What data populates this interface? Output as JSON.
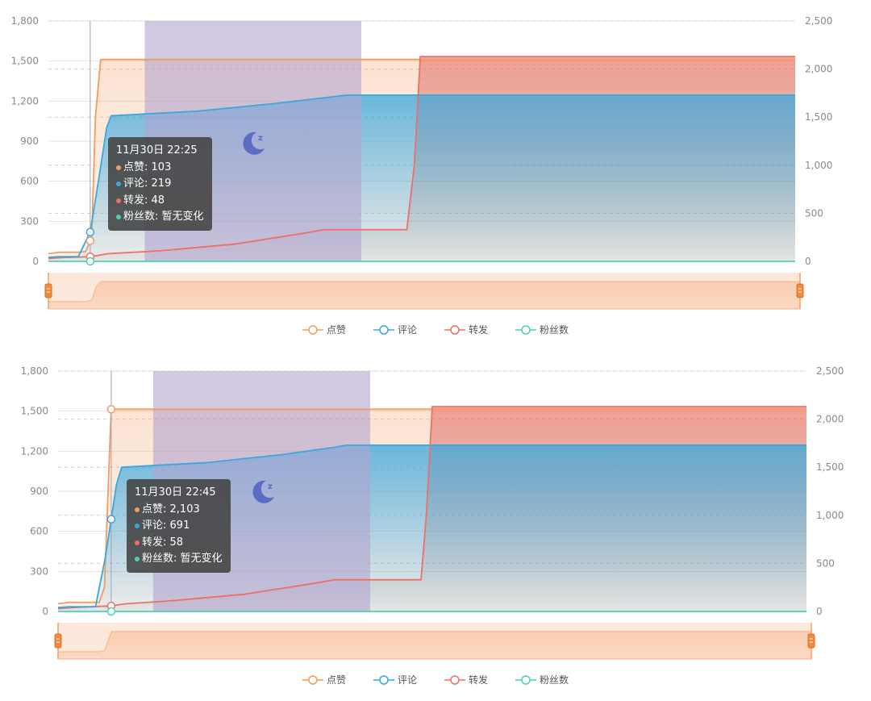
{
  "colors": {
    "likes": "#f59b5e",
    "comments": "#3aa8df",
    "reposts": "#ee6f66",
    "fans": "#4dd0b4",
    "night_band": "#b3a4cf",
    "tooltip_bg": "#464646",
    "moon": "#5a6cc4"
  },
  "icons": {
    "moon": "moon-zz-icon"
  },
  "legend": [
    "点赞",
    "评论",
    "转发",
    "粉丝数"
  ],
  "chart_data": [
    {
      "type": "area",
      "left_axis": {
        "ticks": [
          "0",
          "300",
          "600",
          "900",
          "1,200",
          "1,500",
          "1,800"
        ],
        "ylim": [
          0,
          1800
        ]
      },
      "right_axis": {
        "ticks": [
          "0",
          "500",
          "1,000",
          "1,500",
          "2,000",
          "2,500"
        ],
        "ylim": [
          0,
          2500
        ]
      },
      "x_index_range": [
        0,
        100
      ],
      "night_band": [
        12.9,
        41.9
      ],
      "hover_index": 5.6,
      "series": [
        {
          "name": "点赞",
          "axis": "right",
          "points": [
            [
              0,
              80
            ],
            [
              1.5,
              95
            ],
            [
              4,
              95
            ],
            [
              5,
              103
            ],
            [
              5.8,
              250
            ],
            [
              6.3,
              1500
            ],
            [
              7,
              2100
            ],
            [
              50,
              2100
            ],
            [
              100,
              2100
            ]
          ]
        },
        {
          "name": "评论",
          "axis": "left",
          "points": [
            [
              0,
              30
            ],
            [
              1.5,
              35
            ],
            [
              4,
              35
            ],
            [
              5.6,
              219
            ],
            [
              6.7,
              600
            ],
            [
              7.8,
              1000
            ],
            [
              8.4,
              1090
            ],
            [
              20,
              1125
            ],
            [
              30,
              1180
            ],
            [
              37,
              1225
            ],
            [
              40,
              1245
            ],
            [
              100,
              1245
            ]
          ]
        },
        {
          "name": "转发",
          "axis": "right",
          "points": [
            [
              0,
              30
            ],
            [
              2,
              40
            ],
            [
              5.6,
              48
            ],
            [
              8,
              80
            ],
            [
              15,
              110
            ],
            [
              25,
              180
            ],
            [
              34,
              290
            ],
            [
              37,
              330
            ],
            [
              48,
              330
            ],
            [
              49,
              1000
            ],
            [
              49.8,
              2130
            ],
            [
              100,
              2130
            ]
          ]
        },
        {
          "name": "粉丝数",
          "axis": "right",
          "points": [
            [
              0,
              0
            ],
            [
              100,
              0
            ]
          ]
        }
      ],
      "tooltip": {
        "title": "11月30日 22:25",
        "rows": [
          {
            "label": "点赞",
            "value": "103"
          },
          {
            "label": "评论",
            "value": "219"
          },
          {
            "label": "转发",
            "value": "48"
          },
          {
            "label": "粉丝数",
            "value": "暂无变化"
          }
        ]
      }
    },
    {
      "type": "area",
      "left_axis": {
        "ticks": [
          "0",
          "300",
          "600",
          "900",
          "1,200",
          "1,500",
          "1,800"
        ],
        "ylim": [
          0,
          1800
        ]
      },
      "right_axis": {
        "ticks": [
          "0",
          "500",
          "1,000",
          "1,500",
          "2,000",
          "2,500"
        ],
        "ylim": [
          0,
          2500
        ]
      },
      "x_index_range": [
        0,
        100
      ],
      "night_band": [
        12.7,
        41.7
      ],
      "hover_index": 7.1,
      "series": [
        {
          "name": "点赞",
          "axis": "right",
          "points": [
            [
              0,
              80
            ],
            [
              1.5,
              95
            ],
            [
              5.5,
              95
            ],
            [
              6.2,
              250
            ],
            [
              6.8,
              1500
            ],
            [
              7.1,
              2103
            ],
            [
              50,
              2103
            ],
            [
              100,
              2103
            ]
          ]
        },
        {
          "name": "评论",
          "axis": "left",
          "points": [
            [
              0,
              30
            ],
            [
              1.5,
              35
            ],
            [
              5,
              35
            ],
            [
              6.3,
              400
            ],
            [
              7.1,
              691
            ],
            [
              7.8,
              950
            ],
            [
              8.5,
              1080
            ],
            [
              20,
              1115
            ],
            [
              30,
              1175
            ],
            [
              37,
              1230
            ],
            [
              38.5,
              1245
            ],
            [
              100,
              1245
            ]
          ]
        },
        {
          "name": "转发",
          "axis": "right",
          "points": [
            [
              0,
              30
            ],
            [
              2,
              40
            ],
            [
              7.1,
              58
            ],
            [
              9,
              80
            ],
            [
              15,
              110
            ],
            [
              25,
              180
            ],
            [
              34,
              290
            ],
            [
              37,
              330
            ],
            [
              48.5,
              330
            ],
            [
              49.2,
              1000
            ],
            [
              50,
              2130
            ],
            [
              100,
              2130
            ]
          ]
        },
        {
          "name": "粉丝数",
          "axis": "right",
          "points": [
            [
              0,
              0
            ],
            [
              100,
              0
            ]
          ]
        }
      ],
      "tooltip": {
        "title": "11月30日 22:45",
        "rows": [
          {
            "label": "点赞",
            "value": "2,103"
          },
          {
            "label": "评论",
            "value": "691"
          },
          {
            "label": "转发",
            "value": "58"
          },
          {
            "label": "粉丝数",
            "value": "暂无变化"
          }
        ]
      }
    }
  ]
}
